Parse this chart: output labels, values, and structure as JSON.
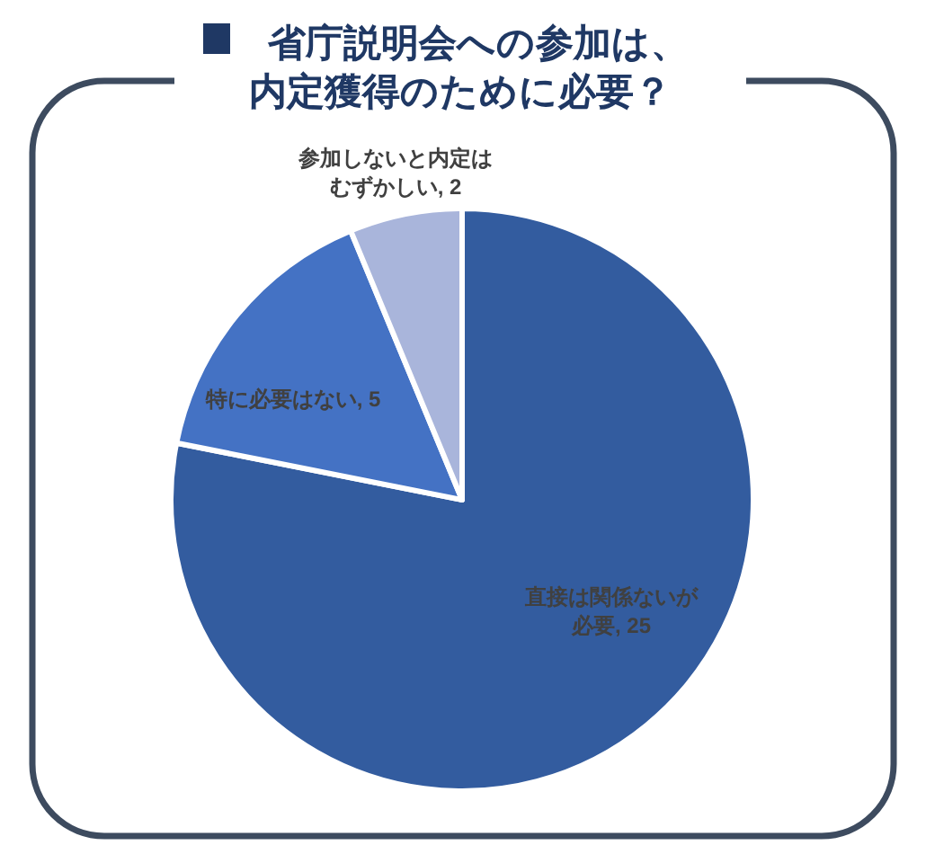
{
  "chart_data": {
    "type": "pie",
    "title": "省庁説明会への参加は、内定獲得のために必要？",
    "categories": [
      "直接は関係ないが必要",
      "特に必要はない",
      "参加しないと内定はむずかしい"
    ],
    "values": [
      25,
      5,
      2
    ],
    "value_labels": [
      ", 25",
      ", 5",
      ", 2"
    ],
    "colors": [
      "#335c9f",
      "#4472c4",
      "#a9b5db"
    ]
  }
}
